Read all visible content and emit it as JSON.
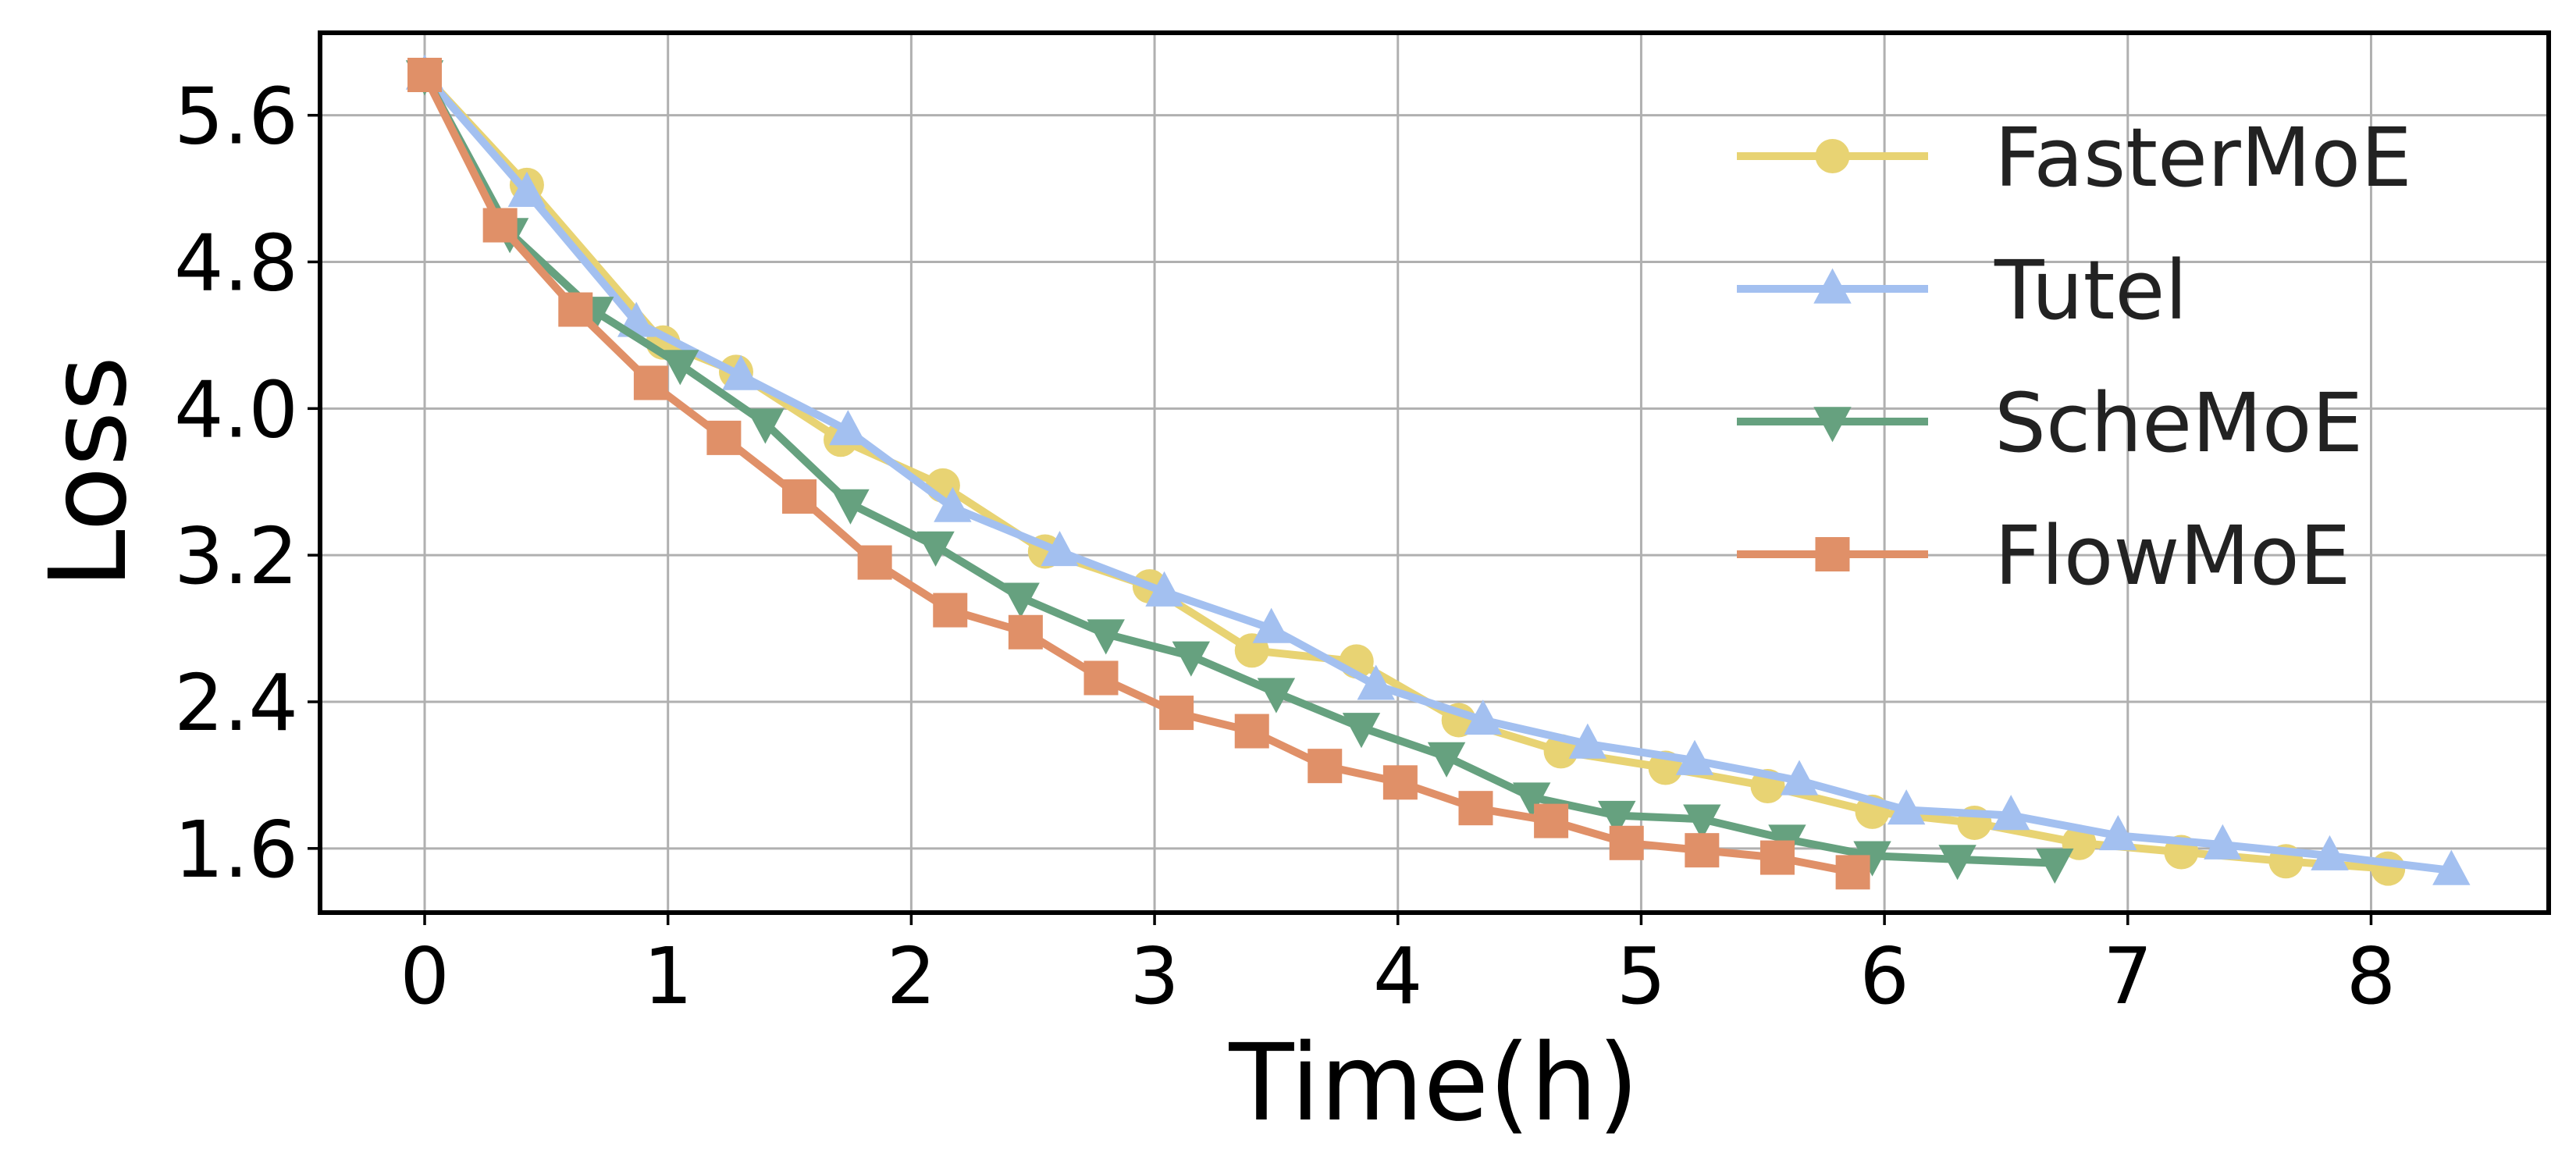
{
  "chart_data": {
    "type": "line",
    "title": "",
    "xlabel": "Time(h)",
    "ylabel": "Loss",
    "xlim": [
      -0.43,
      8.73
    ],
    "ylim": [
      1.25,
      6.05
    ],
    "xticks": [
      0,
      1,
      2,
      3,
      4,
      5,
      6,
      7,
      8
    ],
    "xtick_labels": [
      "0",
      "1",
      "2",
      "3",
      "4",
      "5",
      "6",
      "7",
      "8"
    ],
    "yticks": [
      1.6,
      2.4,
      3.2,
      4.0,
      4.8,
      5.6
    ],
    "ytick_labels": [
      "1.6",
      "2.4",
      "3.2",
      "4.0",
      "4.8",
      "5.6"
    ],
    "grid": true,
    "legend_position": "top-right",
    "series": [
      {
        "name": "FasterMoE",
        "color": "#e8d373",
        "marker": "circle",
        "x": [
          0,
          0.42,
          0.98,
          1.28,
          1.71,
          2.13,
          2.55,
          2.98,
          3.4,
          3.83,
          4.25,
          4.67,
          5.1,
          5.52,
          5.95,
          6.37,
          6.8,
          7.22,
          7.65,
          8.07
        ],
        "y": [
          5.82,
          5.22,
          4.36,
          4.2,
          3.83,
          3.58,
          3.22,
          3.03,
          2.68,
          2.62,
          2.3,
          2.13,
          2.04,
          1.94,
          1.8,
          1.74,
          1.63,
          1.58,
          1.53,
          1.49
        ]
      },
      {
        "name": "Tutel",
        "color": "#a3c0f0",
        "marker": "triangle-up",
        "x": [
          0,
          0.42,
          0.87,
          1.3,
          1.74,
          2.17,
          2.61,
          3.04,
          3.48,
          3.91,
          4.35,
          4.78,
          5.22,
          5.65,
          6.09,
          6.52,
          6.96,
          7.39,
          7.83,
          8.33
        ],
        "y": [
          5.82,
          5.18,
          4.47,
          4.18,
          3.88,
          3.46,
          3.22,
          3.0,
          2.8,
          2.49,
          2.3,
          2.17,
          2.08,
          1.97,
          1.81,
          1.78,
          1.67,
          1.62,
          1.56,
          1.48
        ]
      },
      {
        "name": "ScheMoE",
        "color": "#66a17f",
        "marker": "triangle-down",
        "x": [
          0,
          0.35,
          0.7,
          1.05,
          1.4,
          1.75,
          2.1,
          2.45,
          2.8,
          3.15,
          3.5,
          3.85,
          4.2,
          4.55,
          4.9,
          5.25,
          5.6,
          5.95,
          6.3,
          6.7
        ],
        "y": [
          5.82,
          4.96,
          4.53,
          4.24,
          3.92,
          3.48,
          3.25,
          2.97,
          2.77,
          2.65,
          2.45,
          2.26,
          2.1,
          1.88,
          1.78,
          1.76,
          1.65,
          1.56,
          1.54,
          1.52
        ]
      },
      {
        "name": "FlowMoE",
        "color": "#e09068",
        "marker": "square",
        "x": [
          0,
          0.31,
          0.62,
          0.93,
          1.23,
          1.54,
          1.85,
          2.16,
          2.47,
          2.78,
          3.09,
          3.4,
          3.7,
          4.01,
          4.32,
          4.63,
          4.94,
          5.25,
          5.56,
          5.87
        ],
        "y": [
          5.82,
          5.0,
          4.54,
          4.14,
          3.84,
          3.52,
          3.16,
          2.9,
          2.78,
          2.53,
          2.34,
          2.24,
          2.05,
          1.96,
          1.82,
          1.75,
          1.63,
          1.59,
          1.55,
          1.47
        ]
      }
    ]
  }
}
